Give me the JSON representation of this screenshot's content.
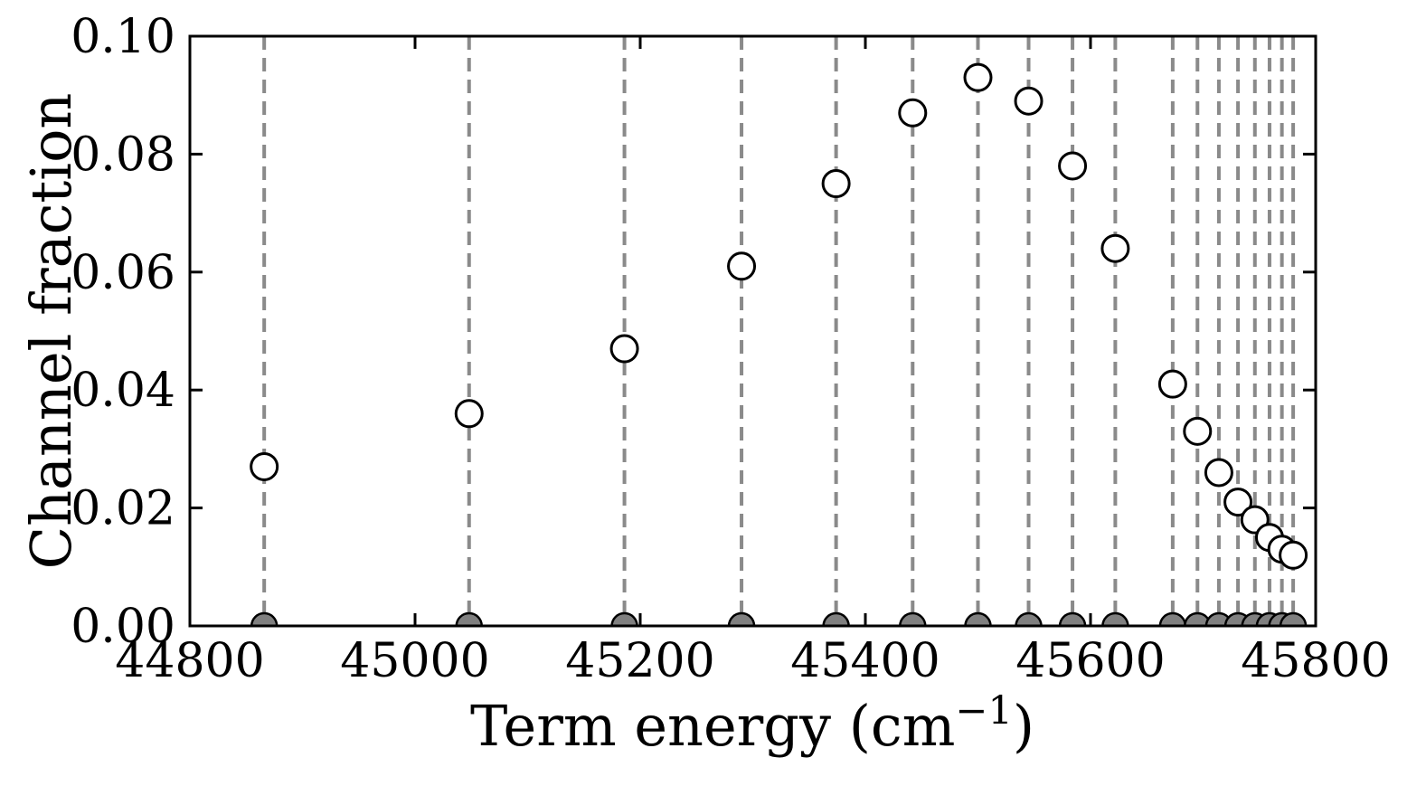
{
  "figure": {
    "background_color": "#ffffff",
    "text_color": "#000000"
  },
  "chart_data": {
    "type": "scatter",
    "title": "",
    "xlabel": "Term energy (cm⁻¹)",
    "xlabel_parts": {
      "prefix": "Term energy (cm",
      "superscript": "−1",
      "suffix": ")"
    },
    "ylabel": "Channel fraction",
    "xlim": [
      44800,
      45800
    ],
    "ylim": [
      0.0,
      0.1
    ],
    "grid": false,
    "legend": "none",
    "x_tick_values": [
      44800,
      45000,
      45200,
      45400,
      45600,
      45800
    ],
    "x_tick_labels": [
      "44800",
      "45000",
      "45200",
      "45400",
      "45600",
      "45800"
    ],
    "y_tick_values": [
      0.0,
      0.02,
      0.04,
      0.06,
      0.08,
      0.1
    ],
    "y_tick_labels": [
      "0.00",
      "0.02",
      "0.04",
      "0.06",
      "0.08",
      "0.10"
    ],
    "x": [
      44866,
      45048,
      45186,
      45290,
      45374,
      45442,
      45500,
      45545,
      45584,
      45622,
      45673,
      45695,
      45714,
      45731,
      45746,
      45759,
      45770,
      45780
    ],
    "series": [
      {
        "name": "open-circle-series",
        "marker": "open-circle",
        "fill_color": "#ffffff",
        "edge_color": "#000000",
        "y": [
          0.027,
          0.036,
          0.047,
          0.061,
          0.075,
          0.087,
          0.093,
          0.089,
          0.078,
          0.064,
          0.041,
          0.033,
          0.026,
          0.021,
          0.018,
          0.015,
          0.013,
          0.012
        ]
      },
      {
        "name": "filled-circle-series",
        "marker": "filled-circle",
        "fill_color": "#808080",
        "edge_color": "#000000",
        "y": [
          0.0,
          0.0,
          0.0,
          0.0,
          0.0,
          0.0,
          0.0,
          0.0,
          0.0,
          0.0,
          0.0,
          0.0,
          0.0,
          0.0,
          0.0,
          0.0,
          0.0,
          0.0
        ]
      }
    ],
    "vlines": {
      "style": "dashed",
      "color": "#8a8a8a",
      "x": [
        44866,
        45048,
        45186,
        45290,
        45374,
        45442,
        45500,
        45545,
        45584,
        45622,
        45673,
        45695,
        45714,
        45731,
        45746,
        45759,
        45770,
        45780
      ]
    }
  }
}
